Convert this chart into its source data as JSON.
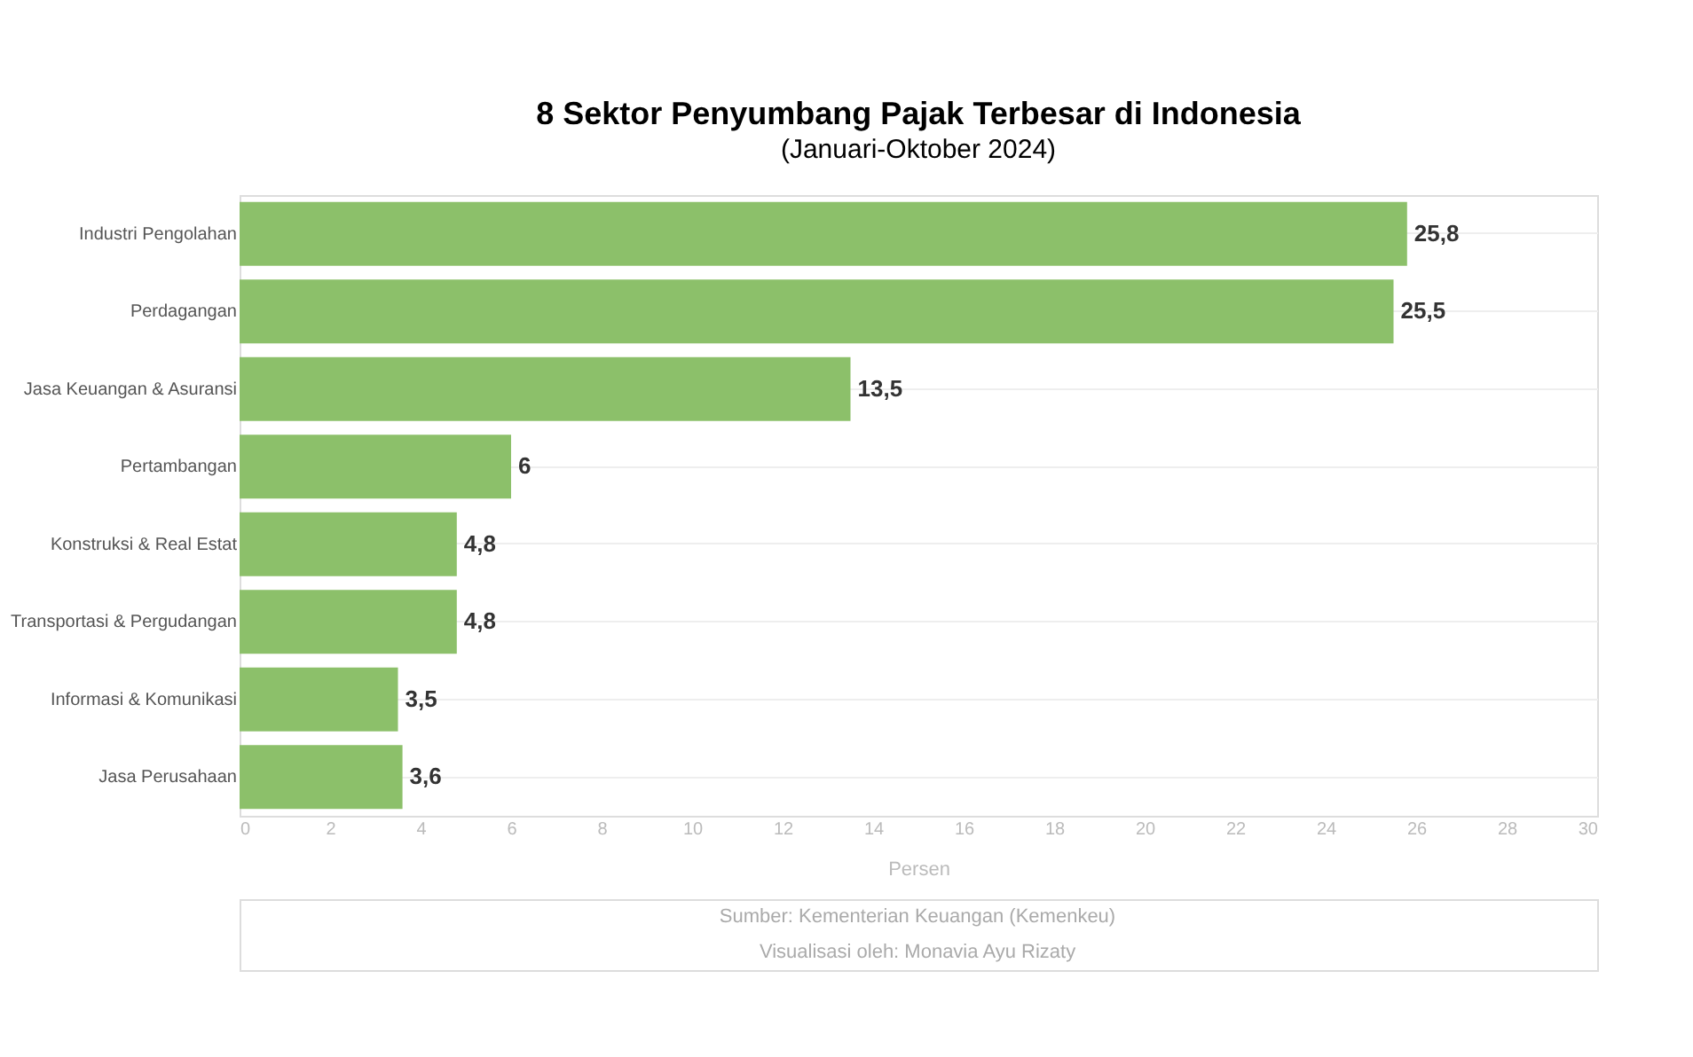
{
  "chart_data": {
    "type": "bar",
    "orientation": "horizontal",
    "title": "8 Sektor Penyumbang Pajak Terbesar di Indonesia",
    "subtitle": "(Januari-Oktober 2024)",
    "categories": [
      "Industri Pengolahan",
      "Perdagangan",
      "Jasa Keuangan & Asuransi",
      "Pertambangan",
      "Konstruksi & Real Estat",
      "Transportasi & Pergudangan",
      "Informasi & Komunikasi",
      "Jasa Perusahaan"
    ],
    "values": [
      25.8,
      25.5,
      13.5,
      6,
      4.8,
      4.8,
      3.5,
      3.6
    ],
    "value_labels": [
      "25,8",
      "25,5",
      "13,5",
      "6",
      "4,8",
      "4,8",
      "3,5",
      "3,6"
    ],
    "color": "#8cc06a",
    "xlim": [
      0,
      30
    ],
    "xticks": [
      0,
      2,
      4,
      6,
      8,
      10,
      12,
      14,
      16,
      18,
      20,
      22,
      24,
      26,
      28,
      30
    ],
    "xlabel": "Persen",
    "grid": "y",
    "annotations": [
      "Sumber: Kementerian Keuangan (Kemenkeu)",
      "Visualisasi oleh: Monavia Ayu Rizaty"
    ]
  }
}
